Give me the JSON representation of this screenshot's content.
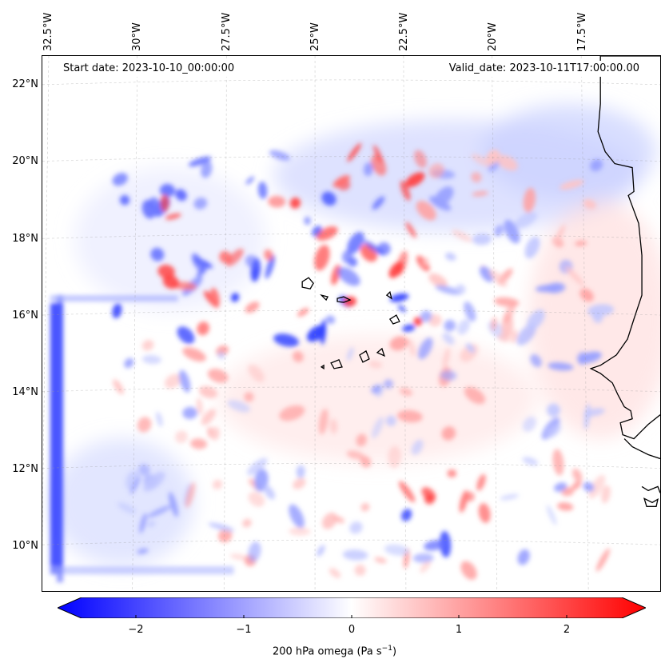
{
  "map": {
    "start_date": "Start date: 2023-10-10_00:00:00",
    "valid_date": "Valid_date: 2023-10-11T17:00:00.00",
    "lat_labels": [
      "22°N",
      "20°N",
      "18°N",
      "16°N",
      "14°N",
      "12°N",
      "10°N"
    ],
    "lon_labels": [
      "32.5°W",
      "30°W",
      "27.5°W",
      "25°W",
      "22.5°W",
      "20°W",
      "17.5°W"
    ],
    "colorbar": {
      "ticks": [
        "−2",
        "−1",
        "0",
        "1",
        "2"
      ],
      "label": "200 hPa omega (Pa s",
      "label_sup": "−1",
      "label_close": ")",
      "vmin": -2.75,
      "vmax": 2.75,
      "cmap": "bwr"
    },
    "colors": {
      "negative": "#0000ff",
      "neutral": "#ffffff",
      "positive": "#ff0000",
      "coastline": "#000000"
    }
  }
}
